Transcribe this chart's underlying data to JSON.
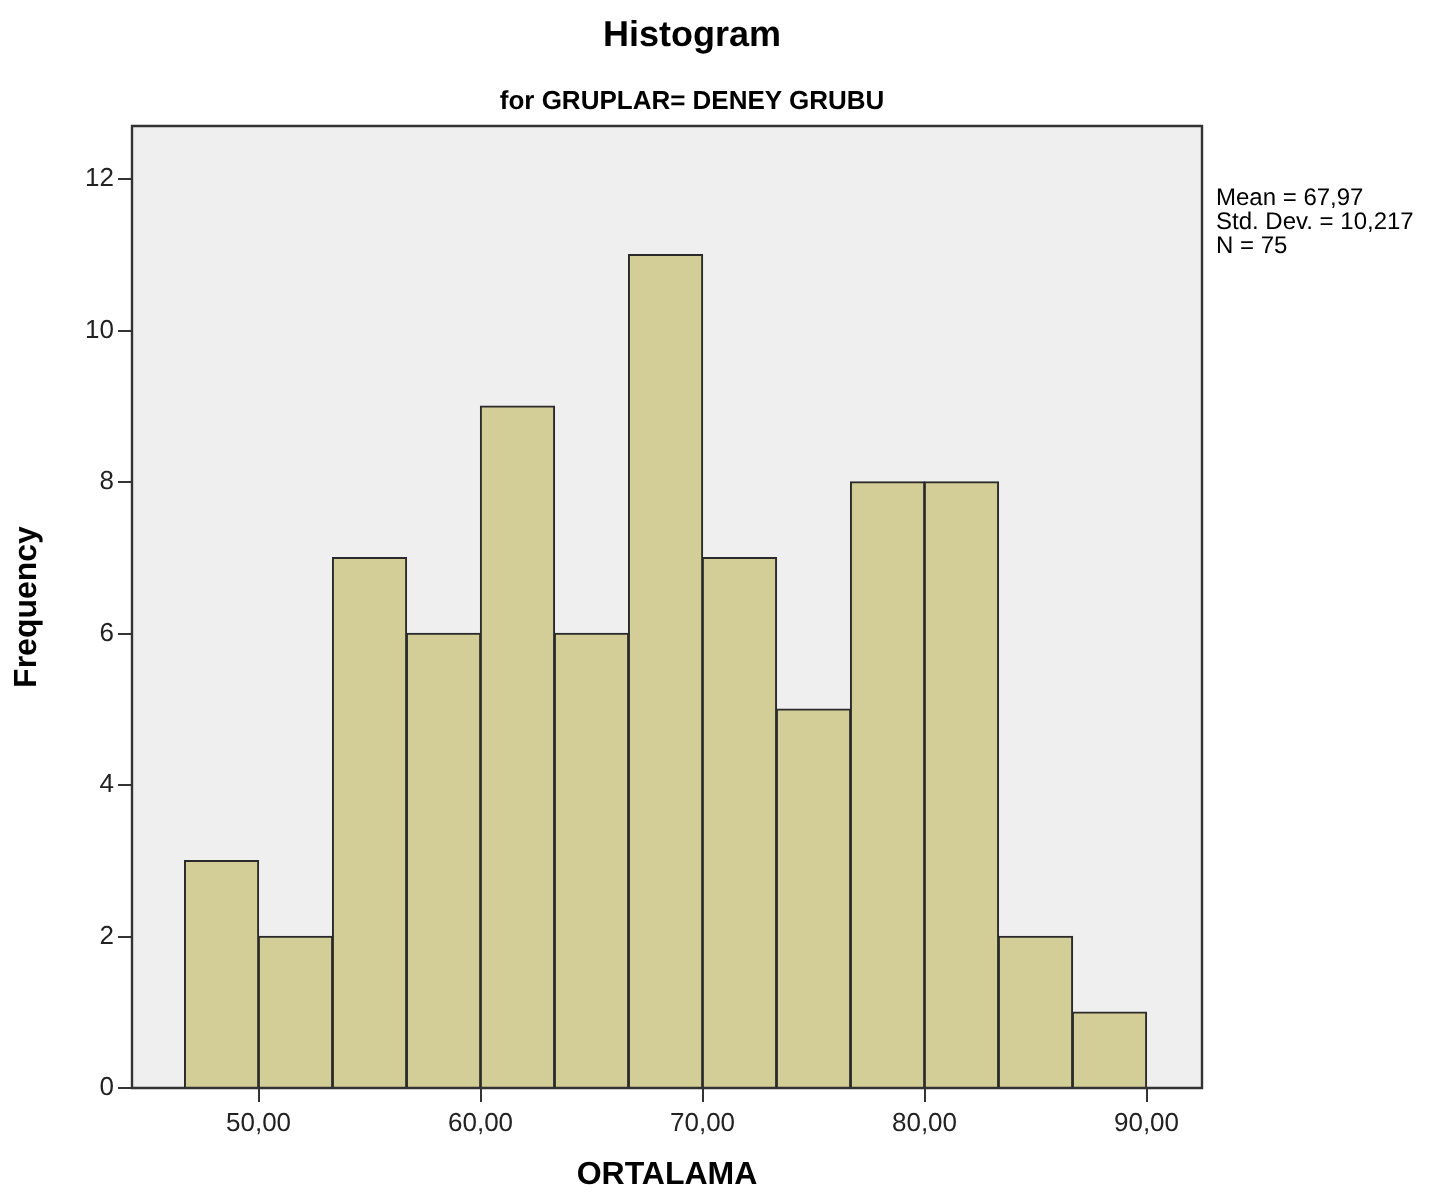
{
  "chart_data": {
    "type": "histogram",
    "title": "Histogram",
    "subtitle": "for GRUPLAR= DENEY GRUBU",
    "xlabel": "ORTALAMA",
    "ylabel": "Frequency",
    "bins": [
      46.67,
      50,
      53.33,
      56.67,
      60,
      63.33,
      66.67,
      70,
      73.33,
      76.67,
      80,
      83.33,
      86.67,
      90
    ],
    "values": [
      3,
      2,
      7,
      6,
      9,
      6,
      11,
      7,
      5,
      8,
      8,
      2,
      1
    ],
    "color": "#d3ce98",
    "xlim": [
      44.3,
      92.5
    ],
    "xticks": [
      {
        "value": 50,
        "label": "50,00"
      },
      {
        "value": 60,
        "label": "60,00"
      },
      {
        "value": 70,
        "label": "70,00"
      },
      {
        "value": 80,
        "label": "80,00"
      },
      {
        "value": 90,
        "label": "90,00"
      }
    ],
    "ylim": [
      0,
      12.7
    ],
    "yticks": [
      0,
      2,
      4,
      6,
      8,
      10,
      12
    ],
    "annotations": [
      "Mean = 67,97",
      "Std. Dev. = 10,217",
      "N = 75"
    ],
    "legend": false
  }
}
